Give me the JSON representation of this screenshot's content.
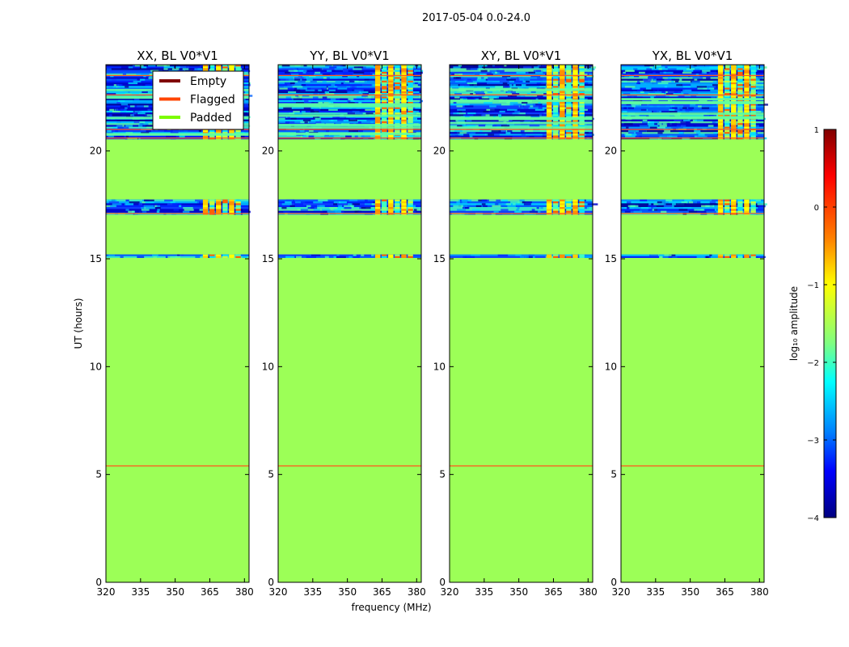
{
  "figure": {
    "suptitle": "2017-05-04 0.0-24.0",
    "xlabel": "frequency (MHz)",
    "ylabel": "UT (hours)"
  },
  "chart_data": [
    {
      "type": "heatmap",
      "title": "XX, BL V0*V1",
      "xlabel": "frequency (MHz)",
      "ylabel": "UT (hours)",
      "xlim": [
        320,
        382
      ],
      "ylim": [
        0,
        24
      ],
      "xticks": [
        "320",
        "335",
        "350",
        "365",
        "380"
      ],
      "yticks": [
        "0",
        "5",
        "10",
        "15",
        "20"
      ],
      "legend": {
        "placement": "top-right",
        "entries": [
          {
            "label": "Empty",
            "color": "#800000"
          },
          {
            "label": "Flagged",
            "color": "#ff4500"
          },
          {
            "label": "Padded",
            "color": "#7cfc00"
          }
        ]
      }
    },
    {
      "type": "heatmap",
      "title": "YY, BL V0*V1",
      "xlim": [
        320,
        382
      ],
      "ylim": [
        0,
        24
      ],
      "xticks": [
        "320",
        "335",
        "350",
        "365",
        "380"
      ],
      "yticks": [
        "0",
        "5",
        "10",
        "15",
        "20"
      ]
    },
    {
      "type": "heatmap",
      "title": "XY, BL V0*V1",
      "xlim": [
        320,
        382
      ],
      "ylim": [
        0,
        24
      ],
      "xticks": [
        "320",
        "335",
        "350",
        "365",
        "380"
      ],
      "yticks": [
        "0",
        "5",
        "10",
        "15",
        "20"
      ]
    },
    {
      "type": "heatmap",
      "title": "YX, BL V0*V1",
      "xlim": [
        320,
        382
      ],
      "ylim": [
        0,
        24
      ],
      "xticks": [
        "320",
        "335",
        "350",
        "365",
        "380"
      ],
      "yticks": [
        "0",
        "5",
        "10",
        "15",
        "20"
      ]
    }
  ],
  "data_regions": {
    "padded_color": "#9cff57",
    "flagged_color": "#ff5a1e",
    "padded_ranges_hours": [
      [
        0,
        15.05
      ],
      [
        15.2,
        17.05
      ],
      [
        17.75,
        20.55
      ]
    ],
    "data_bands_hours": [
      [
        20.55,
        24.0
      ],
      [
        17.05,
        17.75
      ],
      [
        15.05,
        15.2
      ]
    ],
    "flag_lines_hours": [
      5.4,
      17.1,
      20.6,
      21.0,
      22.6,
      23.5
    ],
    "rfi_channel_range_mhz": [
      362,
      379
    ]
  },
  "colorbar": {
    "label": "log₁₀ amplitude",
    "range": [
      -4,
      1
    ],
    "ticks": [
      "1",
      "0",
      "−1",
      "−2",
      "−3",
      "−4"
    ],
    "colors": [
      "#800000",
      "#ff0000",
      "#ff8000",
      "#ffff00",
      "#80ff80",
      "#00ffff",
      "#0080ff",
      "#0000ff",
      "#000080"
    ]
  }
}
